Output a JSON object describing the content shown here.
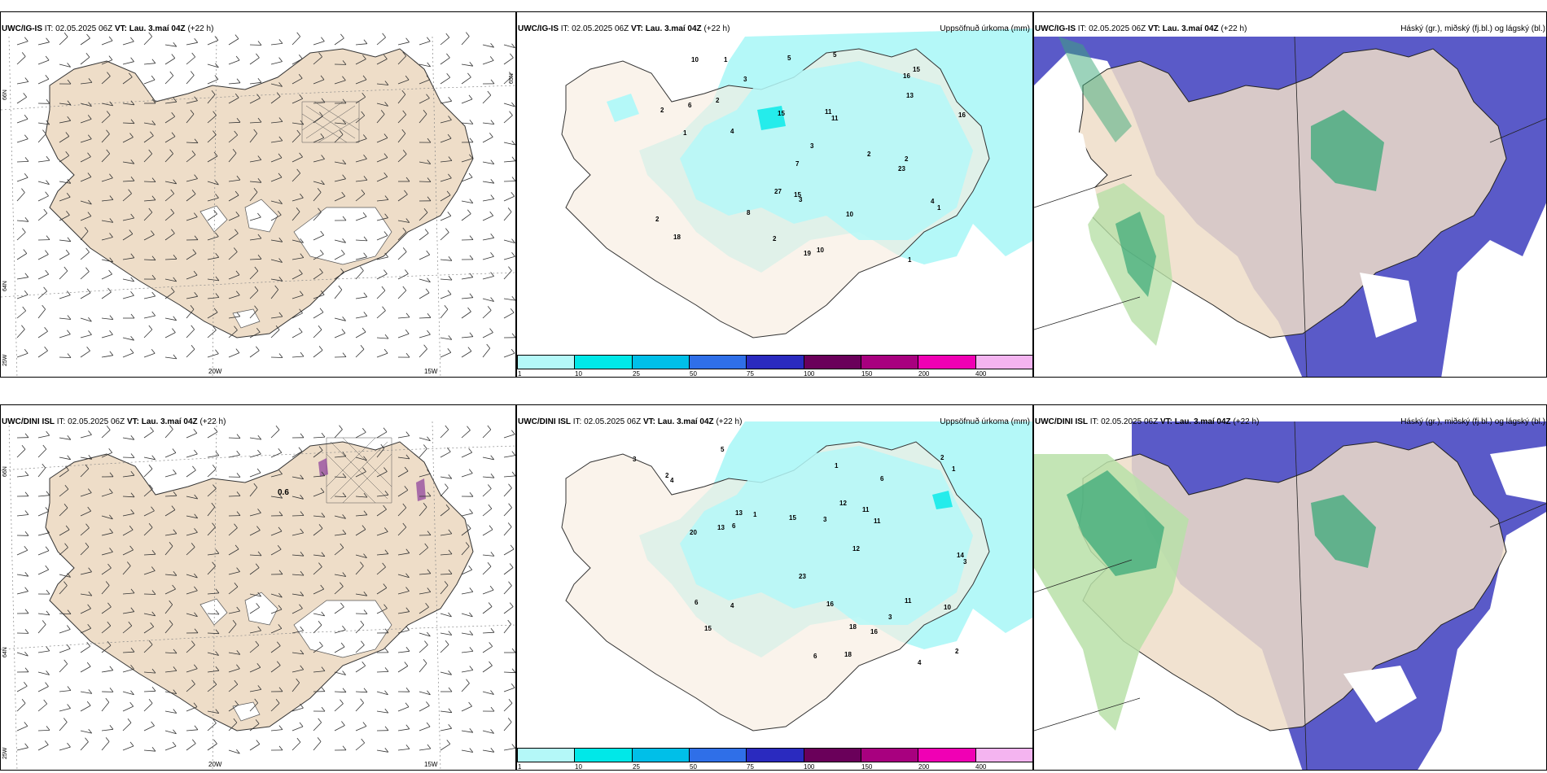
{
  "rows": [
    {
      "model": "UWC/IG-IS",
      "panels": [
        {
          "model": "UWC/IG-IS",
          "it_label": "IT:",
          "it_value": "02.05.2025 06Z",
          "vt_label": "VT:",
          "vt_value": "Lau. 3.maí 04Z",
          "offset": "(+22 h)",
          "right_title": ""
        },
        {
          "model": "UWC/IG-IS",
          "it_label": "IT:",
          "it_value": "02.05.2025 06Z",
          "vt_label": "VT:",
          "vt_value": "Lau. 3.maí 04Z",
          "offset": "(+22 h)",
          "right_title": "Uppsöfnuð úrkoma (mm)"
        },
        {
          "model": "UWC/IG-IS",
          "it_label": "IT:",
          "it_value": "02.05.2025 06Z",
          "vt_label": "VT:",
          "vt_value": "Lau. 3.maí 04Z",
          "offset": "(+22 h)",
          "right_title": "Háský (gr.), miðský (fj.bl.) og lágský (bl.)"
        }
      ]
    },
    {
      "model": "UWC/DINI ISL",
      "panels": [
        {
          "model": "UWC/DINI ISL",
          "it_label": "IT:",
          "it_value": "02.05.2025 06Z",
          "vt_label": "VT:",
          "vt_value": "Lau. 3.maí 04Z",
          "offset": "(+22 h)",
          "right_title": ""
        },
        {
          "model": "UWC/DINI ISL",
          "it_label": "IT:",
          "it_value": "02.05.2025 06Z",
          "vt_label": "VT:",
          "vt_value": "Lau. 3.maí 04Z",
          "offset": "(+22 h)",
          "right_title": "Uppsöfnuð úrkoma (mm)"
        },
        {
          "model": "UWC/DINI ISL",
          "it_label": "IT:",
          "it_value": "02.05.2025 06Z",
          "vt_label": "VT:",
          "vt_value": "Lau. 3.maí 04Z",
          "offset": "(+22 h)",
          "right_title": "Háský (gr.), miðský (fj.bl.) og lágský (bl.)"
        }
      ]
    }
  ],
  "lon_labels": [
    "20W",
    "15W"
  ],
  "lat_labels": {
    "n66": "66N",
    "n64": "64N",
    "w25": "25W",
    "n65": "65N"
  },
  "colorbar": {
    "colors": [
      "#b4f8f8",
      "#00e8e8",
      "#00bfe8",
      "#2f6fe8",
      "#2a2abf",
      "#6a005a",
      "#a8007f",
      "#f000b4",
      "#f4b4f0"
    ],
    "labels": [
      "1",
      "10",
      "25",
      "50",
      "75",
      "100",
      "150",
      "200",
      "400"
    ]
  },
  "precip_values_top": [
    "1",
    "2",
    "5",
    "7",
    "2",
    "2",
    "1",
    "3",
    "19",
    "15",
    "15",
    "10",
    "23",
    "16",
    "27",
    "6",
    "10",
    "13",
    "18",
    "11",
    "15",
    "16",
    "10",
    "4",
    "1",
    "2",
    "2",
    "11",
    "5",
    "3",
    "3",
    "1",
    "4",
    "8",
    "2"
  ],
  "precip_values_bottom": [
    "3",
    "4",
    "3",
    "15",
    "11",
    "11",
    "20",
    "23",
    "14",
    "16",
    "13",
    "18",
    "11",
    "5",
    "6",
    "6",
    "12",
    "13",
    "16",
    "15",
    "18",
    "2",
    "3",
    "1",
    "10",
    "2",
    "4",
    "6",
    "2",
    "1",
    "4",
    "3",
    "12",
    "1",
    "6"
  ],
  "wind_marker_label": "0.6",
  "colors": {
    "land": "#eeddc8",
    "precip": "#b4f8f8",
    "high_cloud": "#5a5ac8",
    "mid_cloud": "#3aa878",
    "low_cloud": "#b8e0a8",
    "light_green": "#d8f0c8"
  }
}
